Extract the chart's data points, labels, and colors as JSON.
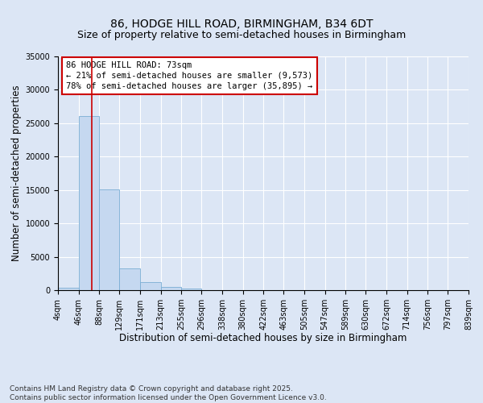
{
  "title_line1": "86, HODGE HILL ROAD, BIRMINGHAM, B34 6DT",
  "title_line2": "Size of property relative to semi-detached houses in Birmingham",
  "xlabel": "Distribution of semi-detached houses by size in Birmingham",
  "ylabel": "Number of semi-detached properties",
  "footer_line1": "Contains HM Land Registry data © Crown copyright and database right 2025.",
  "footer_line2": "Contains public sector information licensed under the Open Government Licence v3.0.",
  "annotation_line1": "86 HODGE HILL ROAD: 73sqm",
  "annotation_line2": "← 21% of semi-detached houses are smaller (9,573)",
  "annotation_line3": "78% of semi-detached houses are larger (35,895) →",
  "property_size_sqm": 73,
  "bin_edges": [
    4,
    46,
    88,
    129,
    171,
    213,
    255,
    296,
    338,
    380,
    422,
    463,
    505,
    547,
    589,
    630,
    672,
    714,
    756,
    797,
    839
  ],
  "bin_labels": [
    "4sqm",
    "46sqm",
    "88sqm",
    "129sqm",
    "171sqm",
    "213sqm",
    "255sqm",
    "296sqm",
    "338sqm",
    "380sqm",
    "422sqm",
    "463sqm",
    "505sqm",
    "547sqm",
    "589sqm",
    "630sqm",
    "672sqm",
    "714sqm",
    "756sqm",
    "797sqm",
    "839sqm"
  ],
  "bar_heights": [
    350,
    26100,
    15100,
    3300,
    1200,
    450,
    200,
    0,
    0,
    0,
    0,
    0,
    0,
    0,
    0,
    0,
    0,
    0,
    0,
    0
  ],
  "bar_color": "#c5d8f0",
  "bar_edgecolor": "#7aadd4",
  "vline_color": "#cc0000",
  "vline_x": 73,
  "ylim": [
    0,
    35000
  ],
  "yticks": [
    0,
    5000,
    10000,
    15000,
    20000,
    25000,
    30000,
    35000
  ],
  "background_color": "#dce6f5",
  "plot_background": "#dce6f5",
  "grid_color": "#ffffff",
  "annotation_box_facecolor": "#ffffff",
  "annotation_box_edgecolor": "#cc0000",
  "title_fontsize": 10,
  "subtitle_fontsize": 9,
  "axis_label_fontsize": 8.5,
  "tick_fontsize": 7,
  "annotation_fontsize": 7.5,
  "footer_fontsize": 6.5
}
